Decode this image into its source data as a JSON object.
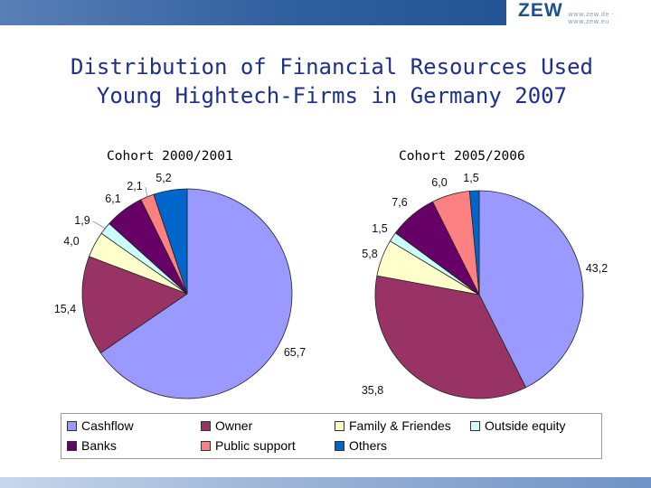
{
  "logo": {
    "text": "ZEW",
    "url": "www.zew.de · www.zew.eu"
  },
  "title_line1": "Distribution of Financial Resources Used",
  "title_line2": "Young Hightech-Firms in Germany 2007",
  "legend_entries": [
    "Cashflow",
    "Owner",
    "Family & Friendes",
    "Outside equity",
    "Banks",
    "Public support",
    "Others"
  ],
  "colors": [
    "#9999ff",
    "#993366",
    "#ffffcc",
    "#ccffff",
    "#660066",
    "#ff8080",
    "#0066cc"
  ],
  "chart_data": [
    {
      "type": "pie",
      "title": "Cohort 2000/2001",
      "categories": [
        "Cashflow",
        "Owner",
        "Family & Friendes",
        "Outside equity",
        "Banks",
        "Public support",
        "Others"
      ],
      "values": [
        65.7,
        15.4,
        4.0,
        1.9,
        6.1,
        2.1,
        5.2
      ],
      "value_labels": [
        "65,7",
        "15,4",
        "4,0",
        "1,9",
        "6,1",
        "2,1",
        "5,2"
      ],
      "legend": "bottom"
    },
    {
      "type": "pie",
      "title": "Cohort 2005/2006",
      "categories": [
        "Cashflow",
        "Owner",
        "Family & Friendes",
        "Outside equity",
        "Banks",
        "Public support",
        "Others"
      ],
      "values": [
        43.2,
        35.8,
        5.8,
        1.5,
        7.6,
        6.0,
        1.5
      ],
      "value_labels": [
        "43,2",
        "35,8",
        "5,8",
        "1,5",
        "7,6",
        "6,0",
        "1,5"
      ],
      "legend": "bottom"
    }
  ]
}
